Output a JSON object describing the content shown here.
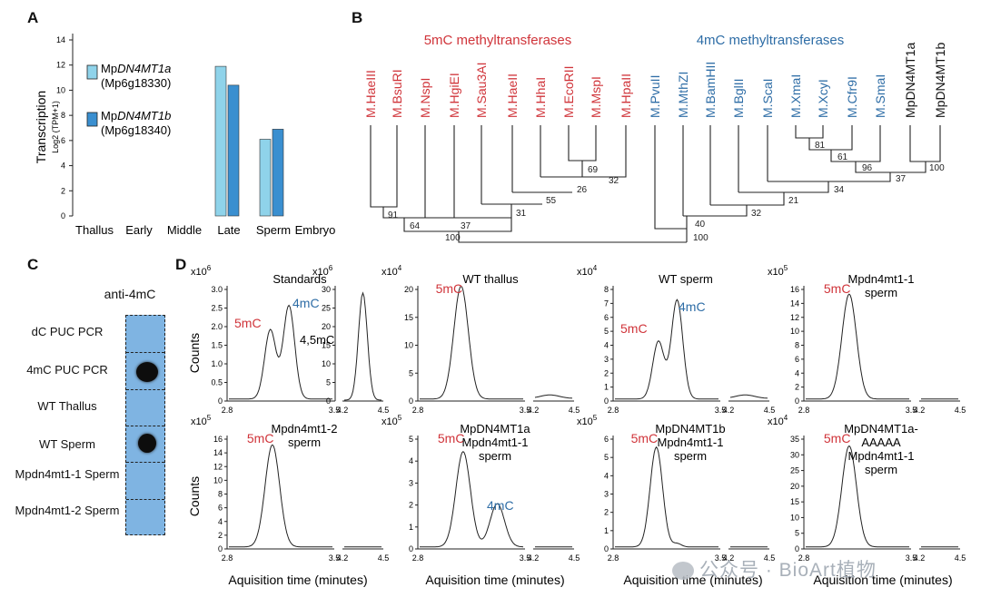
{
  "panels": {
    "a": "A",
    "b": "B",
    "c": "C",
    "d": "D"
  },
  "colors": {
    "red": "#d0343a",
    "blue": "#2e6da6",
    "light_bar": "#8fd3ea",
    "dark_bar": "#3a8fd0",
    "blot_bg": "#7fb4e2"
  },
  "panelA": {
    "ylabel": "Transcription",
    "ylabel_sub": "Log2 (TPM+1)",
    "yticks": [
      "0",
      "2",
      "4",
      "6",
      "8",
      "10",
      "12",
      "14"
    ],
    "categories": [
      "Thallus",
      "Early",
      "Middle",
      "Late",
      "Sperm",
      "Embryo"
    ],
    "legend": [
      {
        "pre": "Mp",
        "it": "DN4MT1a",
        "id": "(Mp6g18330)"
      },
      {
        "pre": "Mp",
        "it": "DN4MT1b",
        "id": "(Mp6g18340)"
      }
    ]
  },
  "chart_data": {
    "type": "bar",
    "categories": [
      "Thallus",
      "Early",
      "Middle",
      "Late",
      "Sperm",
      "Embryo"
    ],
    "series": [
      {
        "name": "MpDN4MT1a",
        "values": [
          0,
          0,
          0,
          11.9,
          6.1,
          0
        ]
      },
      {
        "name": "MpDN4MT1b",
        "values": [
          0,
          0,
          0,
          10.4,
          6.9,
          0
        ]
      }
    ],
    "ylim": [
      0,
      14
    ],
    "ylabel": "Transcription Log2 (TPM+1)"
  },
  "panelB": {
    "group5mC": "5mC methyltransferases",
    "group4mC": "4mC methyltransferases",
    "leaves": [
      "M.HaeIII",
      "M.BsuRI",
      "M.NspI",
      "M.HgiEI",
      "M.Sau3AI",
      "M.HaeII",
      "M.HhaI",
      "M.EcoRII",
      "M.MspI",
      "M.HpaII",
      "M.PvuII",
      "M.MthZI",
      "M.BamHII",
      "M.BglII",
      "M.ScaI",
      "M.XmaI",
      "M.XcyI",
      "M.Cfr9I",
      "M.SmaI",
      "MpDN4MT1a",
      "MpDN4MT1b"
    ],
    "bootstrap": [
      "91",
      "64",
      "37",
      "31",
      "55",
      "26",
      "69",
      "32",
      "100",
      "40",
      "32",
      "21",
      "34",
      "81",
      "61",
      "96",
      "37",
      "100",
      "100"
    ]
  },
  "panelC": {
    "title": "anti-4mC",
    "rows": [
      {
        "label": "dC PUC PCR"
      },
      {
        "label": "4mC PUC PCR"
      },
      {
        "label": "WT Thallus"
      },
      {
        "label": "WT Sperm"
      },
      {
        "label": "Mpdn4mt1-1 Sperm"
      },
      {
        "label": "Mpdn4mt1-2 Sperm"
      }
    ]
  },
  "panelD": {
    "ylabel": "Counts",
    "xlabel": "Aquisition time (minutes)",
    "plots": [
      {
        "title": "Standards",
        "mult": "x10",
        "exp": "6",
        "mult2": "x10",
        "exp2": "6",
        "yticks": [
          "0",
          "0.5",
          "1.0",
          "1.5",
          "2.0",
          "2.5",
          "3.0"
        ],
        "yticks2": [
          "0",
          "5",
          "10",
          "15",
          "20",
          "25",
          "30"
        ],
        "x1": [
          "2.8",
          "3.5"
        ],
        "x2": [
          "4.2",
          "4.5"
        ],
        "l5": "5mC",
        "l4": "4mC",
        "l45": "4,5mC"
      },
      {
        "title": "WT thallus",
        "mult": "x10",
        "exp": "4",
        "yticks": [
          "0",
          "5",
          "10",
          "15",
          "20"
        ],
        "x1": [
          "2.8",
          "3.5"
        ],
        "x2": [
          "4.2",
          "4.5"
        ],
        "l5": "5mC"
      },
      {
        "title": "WT sperm",
        "mult": "x10",
        "exp": "4",
        "yticks": [
          "0",
          "1",
          "2",
          "3",
          "4",
          "5",
          "6",
          "7",
          "8"
        ],
        "x1": [
          "2.8",
          "3.5"
        ],
        "x2": [
          "4.2",
          "4.5"
        ],
        "l5": "5mC",
        "l4": "4mC"
      },
      {
        "title": "Mpdn4mt1-1 sperm",
        "mult": "x10",
        "exp": "5",
        "yticks": [
          "0",
          "2",
          "4",
          "6",
          "8",
          "10",
          "12",
          "14",
          "16"
        ],
        "x1": [
          "2.8",
          "3.5"
        ],
        "x2": [
          "4.2",
          "4.5"
        ],
        "l5": "5mC"
      },
      {
        "title": "Mpdn4mt1-2 sperm",
        "mult": "x10",
        "exp": "5",
        "yticks": [
          "0",
          "2",
          "4",
          "6",
          "8",
          "10",
          "12",
          "14",
          "16"
        ],
        "x1": [
          "2.8",
          "3.5"
        ],
        "x2": [
          "4.2",
          "4.5"
        ],
        "l5": "5mC"
      },
      {
        "title": "MpDN4MT1a Mpdn4mt1-1 sperm",
        "mult": "x10",
        "exp": "5",
        "yticks": [
          "0",
          "1",
          "2",
          "3",
          "4",
          "5"
        ],
        "x1": [
          "2.8",
          "3.5"
        ],
        "x2": [
          "4.2",
          "4.5"
        ],
        "l5": "5mC",
        "l4": "4mC"
      },
      {
        "title": "MpDN4MT1b Mpdn4mt1-1 sperm",
        "mult": "x10",
        "exp": "5",
        "yticks": [
          "0",
          "1",
          "2",
          "3",
          "4",
          "5",
          "6"
        ],
        "x1": [
          "2.8",
          "3.5"
        ],
        "x2": [
          "4.2",
          "4.5"
        ],
        "l5": "5mC"
      },
      {
        "title": "MpDN4MT1a-AAAAA Mpdn4mt1-1 sperm",
        "mult": "x10",
        "exp": "4",
        "yticks": [
          "0",
          "5",
          "10",
          "15",
          "20",
          "25",
          "30",
          "35"
        ],
        "x1": [
          "2.8",
          "3.5"
        ],
        "x2": [
          "4.2",
          "4.5"
        ],
        "l5": "5mC"
      }
    ]
  },
  "watermark": "公众号 · BioArt植物"
}
